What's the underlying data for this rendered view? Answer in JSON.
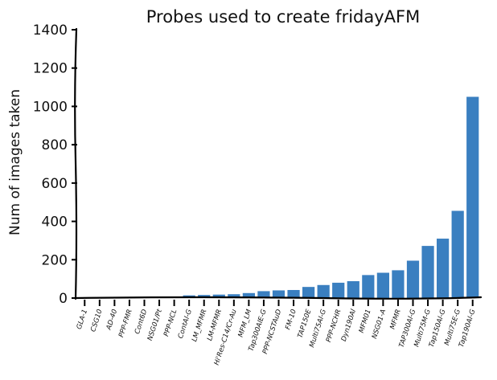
{
  "chart_data": {
    "type": "bar",
    "title": "Probes used to create fridayAFM",
    "xlabel": "",
    "ylabel": "Num of images taken",
    "ylim": [
      0,
      1400
    ],
    "yticks": [
      0,
      200,
      400,
      600,
      800,
      1000,
      1200,
      1400
    ],
    "grid": false,
    "bar_color": "#3a7fc0",
    "categories": [
      "GLA-1",
      "CSG10",
      "AD-40",
      "PPP-FMR",
      "Cont6D",
      "NSG01/Pt",
      "PPP-NCL",
      "ContAl-G",
      "LM_MFMR",
      "LM-MFMR",
      "Hi'Res-C14/Cr-Au",
      "MFM_LM",
      "Tap300AlE-G",
      "PPP-NCSTAuD",
      "FM-10",
      "TAP150E",
      "Multi75Al-G",
      "PPP-NCHR",
      "Dyn190Al",
      "MFM01",
      "NSG01-A",
      "MFMR",
      "TAP300Al-G",
      "Multi75M-G",
      "Tap150Al-G",
      "Multi75E-G",
      "Tap190Al-G"
    ],
    "values": [
      1,
      1,
      1,
      2,
      2,
      5,
      8,
      14,
      16,
      18,
      20,
      26,
      36,
      40,
      42,
      58,
      68,
      80,
      88,
      120,
      132,
      145,
      195,
      272,
      310,
      455,
      1050
    ]
  }
}
